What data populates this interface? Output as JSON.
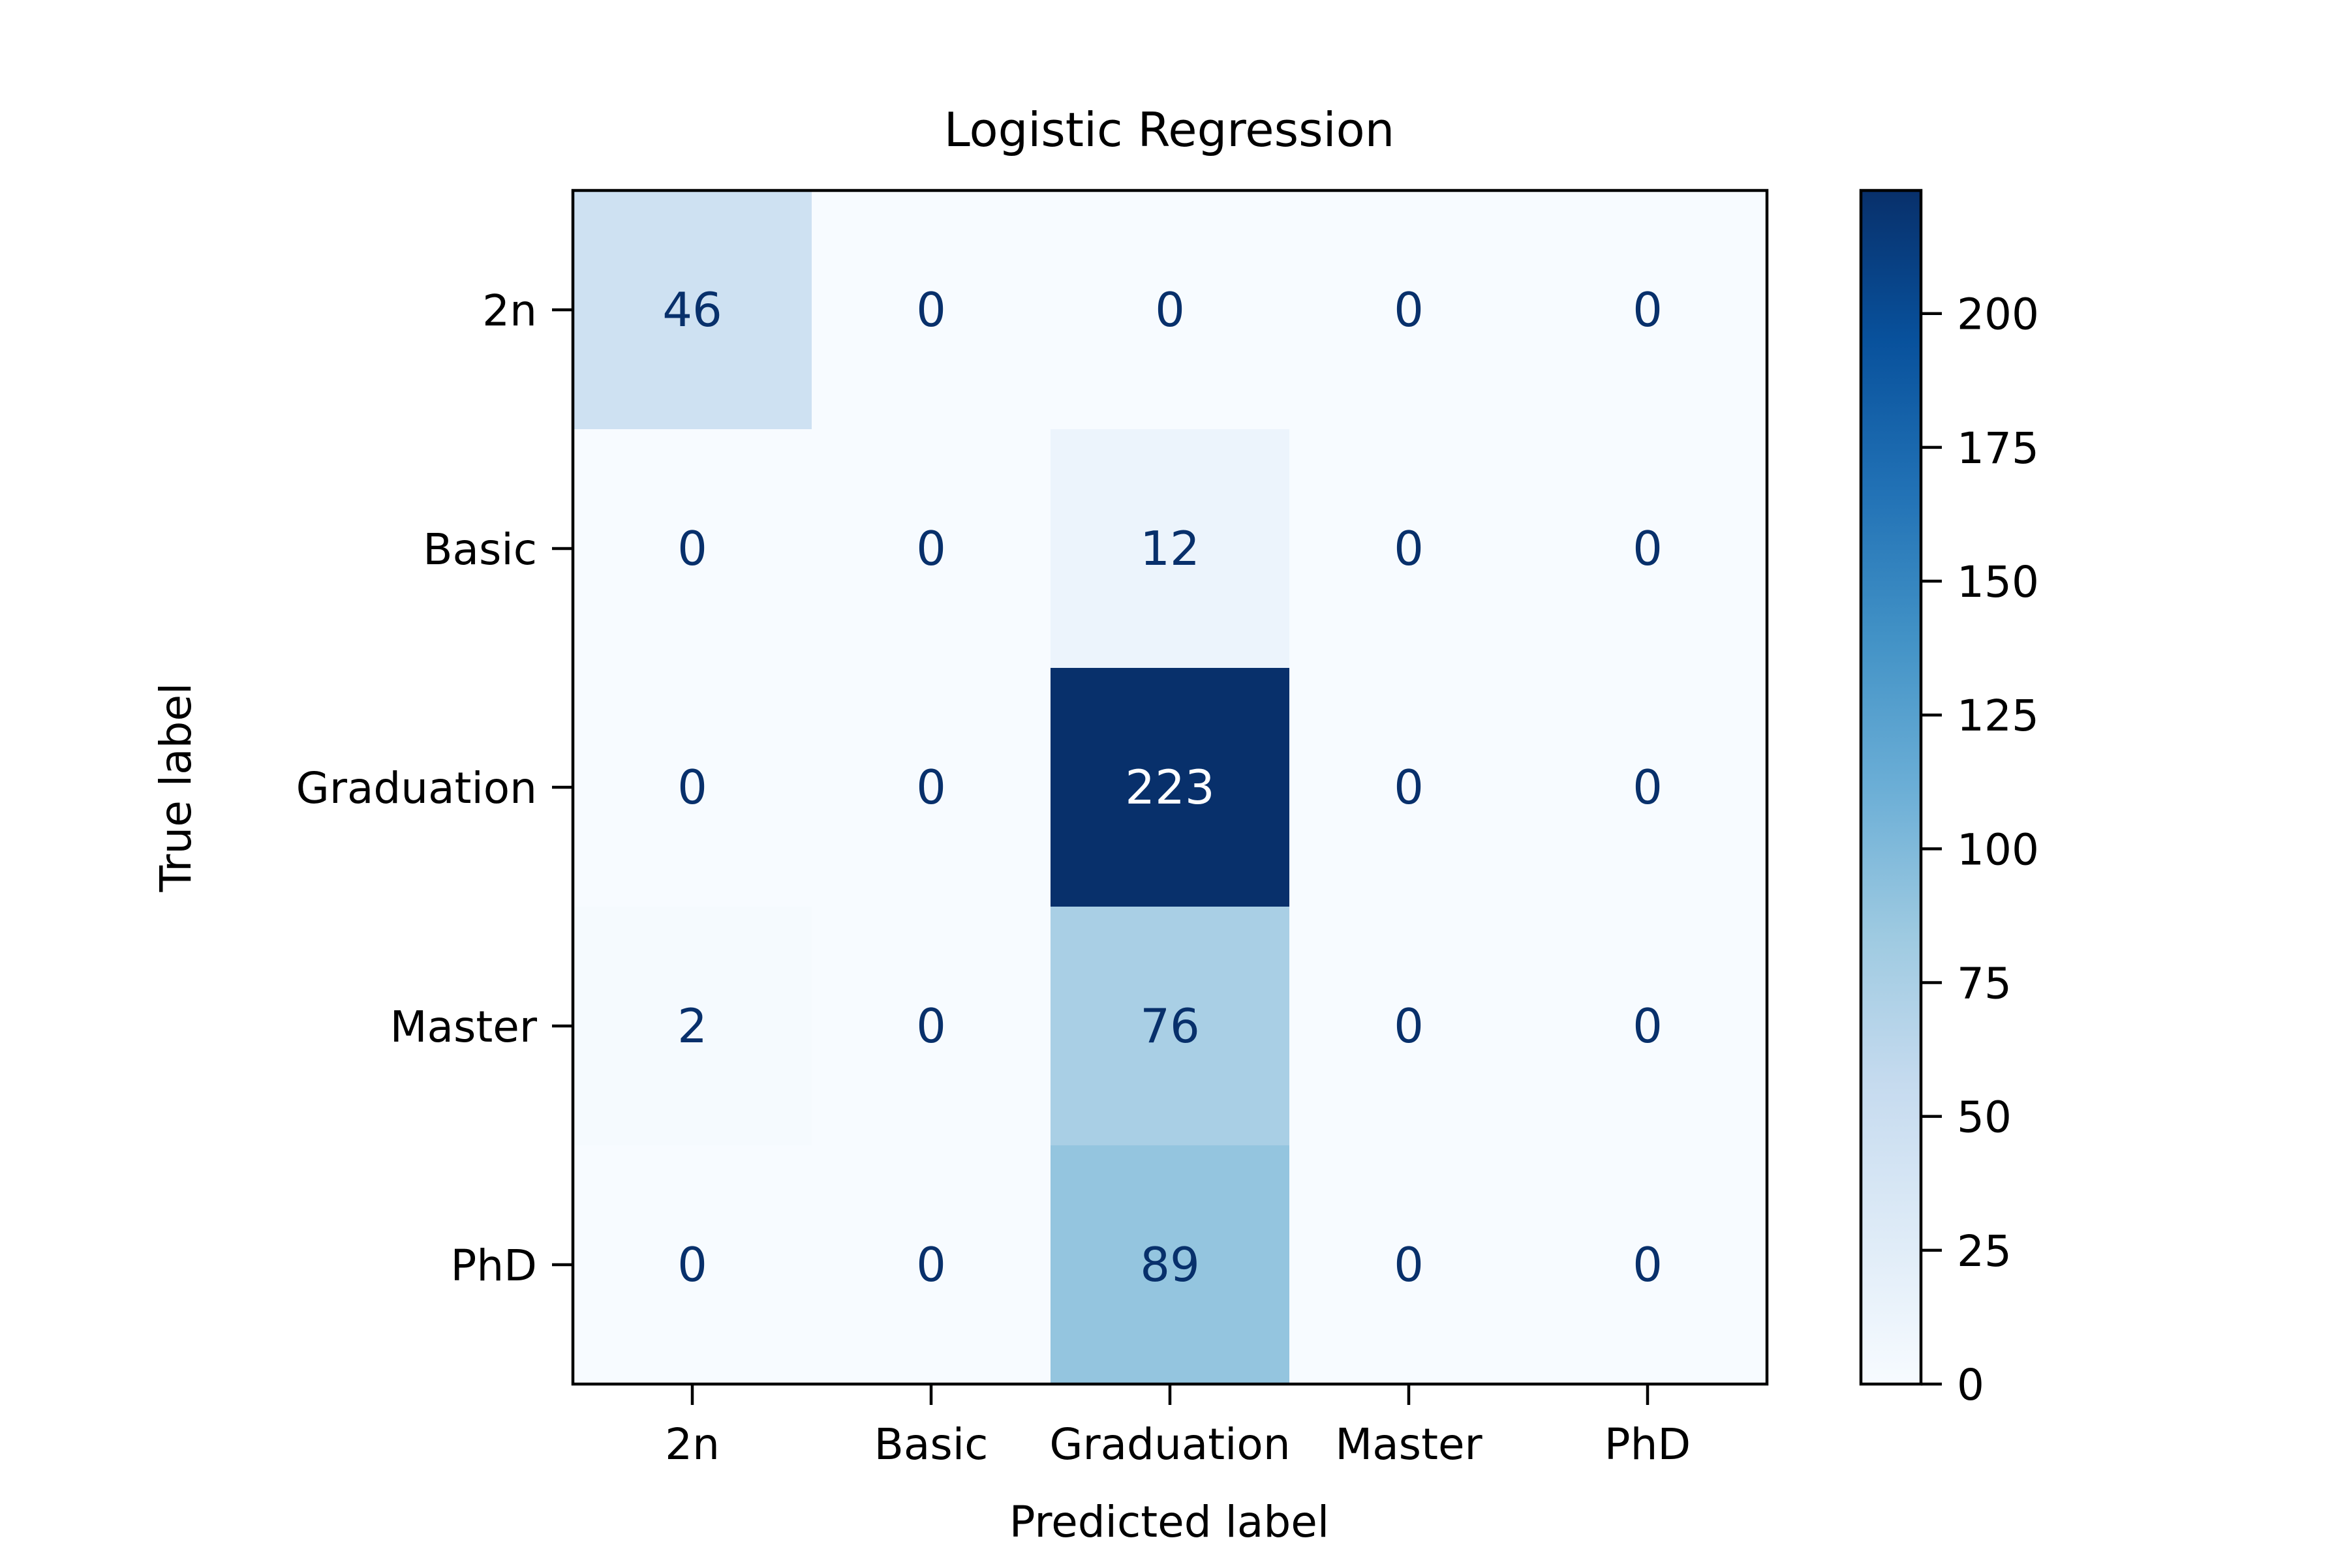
{
  "chart_data": {
    "type": "heatmap",
    "title": "Logistic Regression",
    "xlabel": "Predicted label",
    "ylabel": "True label",
    "x_categories": [
      "2n",
      "Basic",
      "Graduation",
      "Master",
      "PhD"
    ],
    "y_categories": [
      "2n",
      "Basic",
      "Graduation",
      "Master",
      "PhD"
    ],
    "values": [
      [
        46,
        0,
        0,
        0,
        0
      ],
      [
        0,
        0,
        12,
        0,
        0
      ],
      [
        0,
        0,
        223,
        0,
        0
      ],
      [
        2,
        0,
        76,
        0,
        0
      ],
      [
        0,
        0,
        89,
        0,
        0
      ]
    ],
    "colormap": "Blues",
    "colorbar": {
      "range": [
        0,
        223
      ],
      "ticks": [
        0,
        25,
        50,
        75,
        100,
        125,
        150,
        175,
        200
      ],
      "tick_labels": [
        "0",
        "25",
        "50",
        "75",
        "100",
        "125",
        "150",
        "175",
        "200"
      ]
    },
    "colors": {
      "low": "#f7fbff",
      "high": "#08306b",
      "text_dark": "#08306b",
      "text_light": "#ffffff"
    },
    "grid": false
  }
}
